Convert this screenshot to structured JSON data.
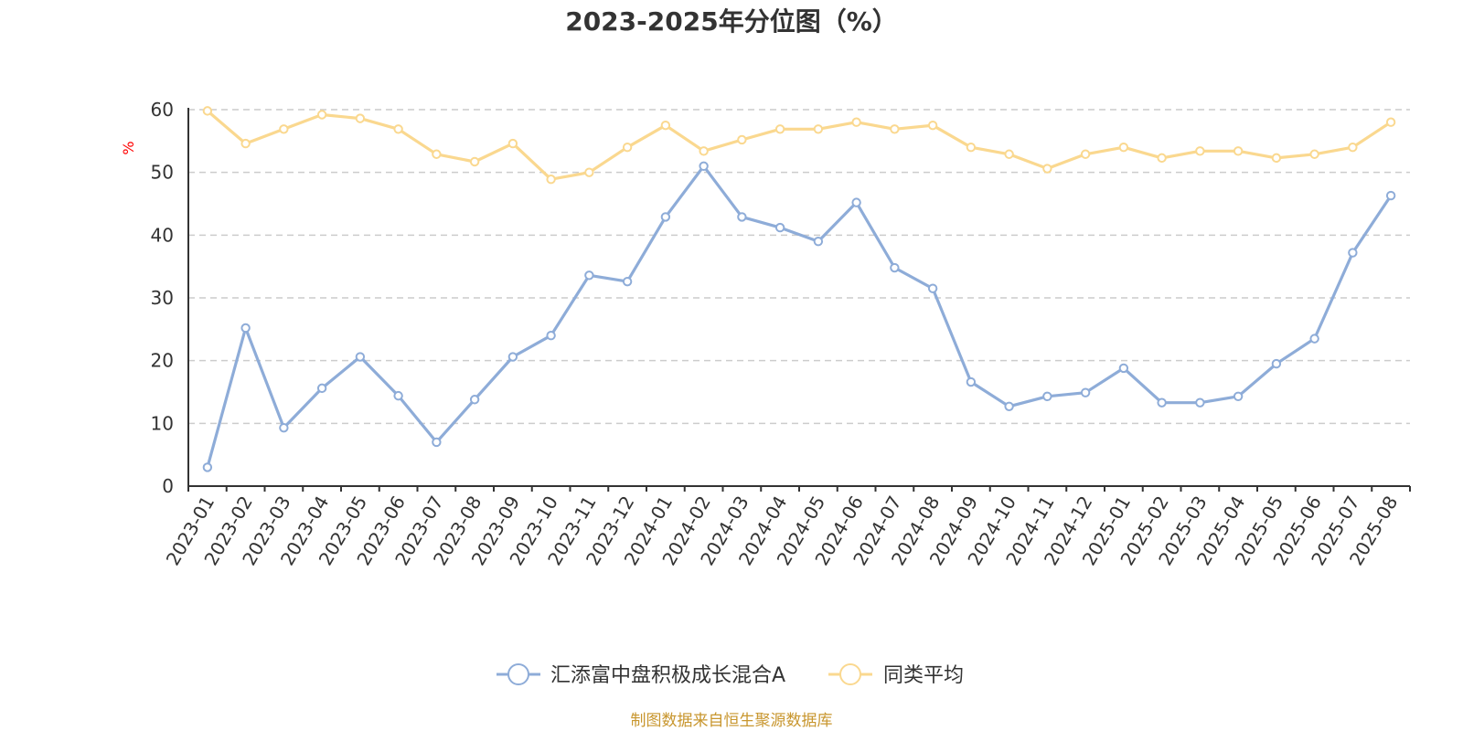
{
  "chart_data": {
    "type": "line",
    "title": "2023-2025年分位图（%）",
    "ylabel": "%",
    "ylim": [
      0,
      60
    ],
    "yticks": [
      "0",
      "10",
      "20",
      "30",
      "40",
      "50",
      "60"
    ],
    "grid": true,
    "legend_position": "bottom",
    "categories": [
      "2023-01",
      "2023-02",
      "2023-03",
      "2023-04",
      "2023-05",
      "2023-06",
      "2023-07",
      "2023-08",
      "2023-09",
      "2023-10",
      "2023-11",
      "2023-12",
      "2024-01",
      "2024-02",
      "2024-03",
      "2024-04",
      "2024-05",
      "2024-06",
      "2024-07",
      "2024-08",
      "2024-09",
      "2024-10",
      "2024-11",
      "2024-12",
      "2025-01",
      "2025-02",
      "2025-03",
      "2025-04",
      "2025-05",
      "2025-06",
      "2025-07",
      "2025-08"
    ],
    "series": [
      {
        "name": "汇添富中盘积极成长混合A",
        "color": "#8eacd8",
        "values": [
          3,
          25.2,
          9.3,
          15.6,
          20.6,
          14.4,
          7,
          13.8,
          20.6,
          24,
          33.6,
          32.6,
          42.9,
          51,
          42.9,
          41.2,
          39,
          45.2,
          34.8,
          31.5,
          16.6,
          12.7,
          14.3,
          14.9,
          18.8,
          13.3,
          13.3,
          14.3,
          19.5,
          23.5,
          37.2,
          46.3
        ]
      },
      {
        "name": "同类平均",
        "color": "#fad88f",
        "values": [
          59.8,
          54.6,
          56.9,
          59.2,
          58.6,
          56.9,
          52.9,
          51.7,
          54.6,
          48.9,
          50,
          54,
          57.5,
          53.4,
          55.2,
          56.9,
          56.9,
          58,
          56.9,
          57.5,
          54,
          52.9,
          50.6,
          52.9,
          54,
          52.3,
          53.4,
          53.4,
          52.3,
          52.9,
          54,
          58
        ]
      }
    ],
    "source": "制图数据来自恒生聚源数据库"
  }
}
